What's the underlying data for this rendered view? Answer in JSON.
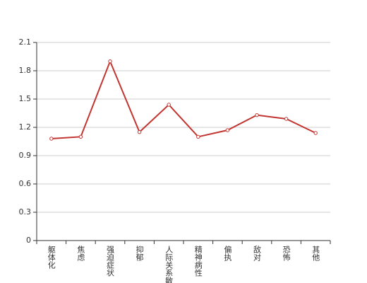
{
  "chart_data": {
    "type": "line",
    "categories": [
      "躯体化",
      "焦虑",
      "强迫症状",
      "抑郁",
      "人际关系敏感",
      "精神病性",
      "偏执",
      "敌对",
      "恐怖",
      "其他"
    ],
    "values": [
      1.08,
      1.1,
      1.9,
      1.15,
      1.44,
      1.1,
      1.17,
      1.33,
      1.29,
      1.14
    ],
    "color": "#c23531",
    "ylim": [
      0,
      2.1
    ],
    "yticks": [
      0,
      0.3,
      0.6,
      0.9,
      1.2,
      1.5,
      1.8,
      2.1
    ],
    "grid": true
  }
}
